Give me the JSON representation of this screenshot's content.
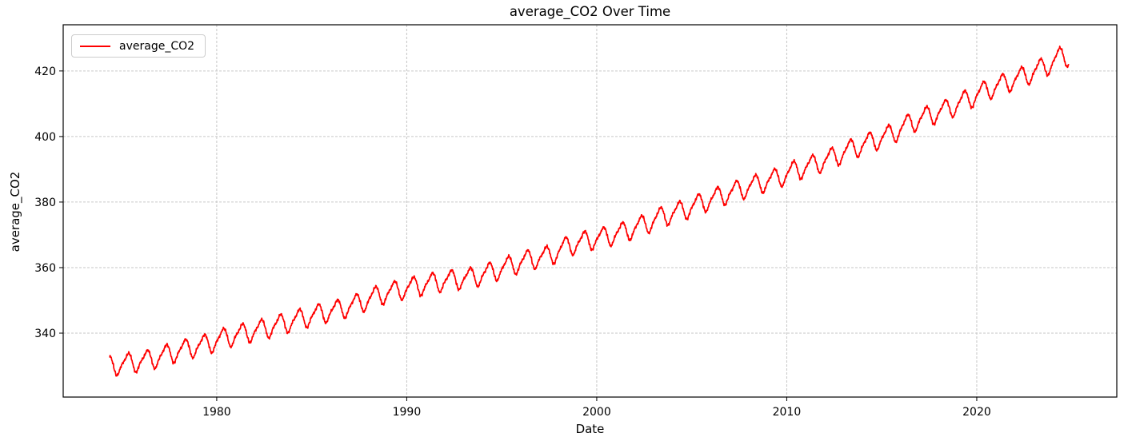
{
  "figure": {
    "background": "#ffffff",
    "title": "average_CO2 Over Time"
  },
  "legend": {
    "label": "average_CO2",
    "line_color": "#ff0000",
    "position": "upper-left"
  },
  "chart_data": {
    "type": "line",
    "title": "average_CO2 Over Time",
    "xlabel": "Date",
    "ylabel": "average_CO2",
    "grid": true,
    "grid_color": "#c6c6c6",
    "grid_dash": [
      3,
      2
    ],
    "legend_position": "upper-left",
    "xlim": [
      1971.92,
      2027.37
    ],
    "ylim": [
      320.5,
      434.1
    ],
    "xticks": [
      1980,
      1990,
      2000,
      2010,
      2020
    ],
    "yticks": [
      340,
      360,
      380,
      400,
      420
    ],
    "series": [
      {
        "name": "average_CO2",
        "color": "#ff0000",
        "line_width": 1.7,
        "x_start": 1974.37,
        "x_end": 2024.85,
        "sampling_step_years": 0.019230769,
        "annual_mean_start_year": 1974,
        "annual_means": [
          330.1,
          331.1,
          332.0,
          333.8,
          335.4,
          336.8,
          338.8,
          340.1,
          341.4,
          343.0,
          344.6,
          346.1,
          347.4,
          349.2,
          351.6,
          353.1,
          354.4,
          355.6,
          356.4,
          357.1,
          358.8,
          360.8,
          362.6,
          363.7,
          366.7,
          368.4,
          369.5,
          371.1,
          373.2,
          375.8,
          377.5,
          379.8,
          381.9,
          383.8,
          385.6,
          387.4,
          389.9,
          391.6,
          393.9,
          396.5,
          398.6,
          400.8,
          404.2,
          406.5,
          408.5,
          411.4,
          414.2,
          416.4,
          418.5,
          421.1,
          424.6
        ],
        "seasonal_cycle_by_month": [
          0.1,
          0.7,
          1.5,
          2.6,
          3.0,
          2.2,
          0.5,
          -1.6,
          -3.2,
          -3.2,
          -2.0,
          -0.7
        ],
        "noise_amplitude": 0.3
      }
    ]
  }
}
